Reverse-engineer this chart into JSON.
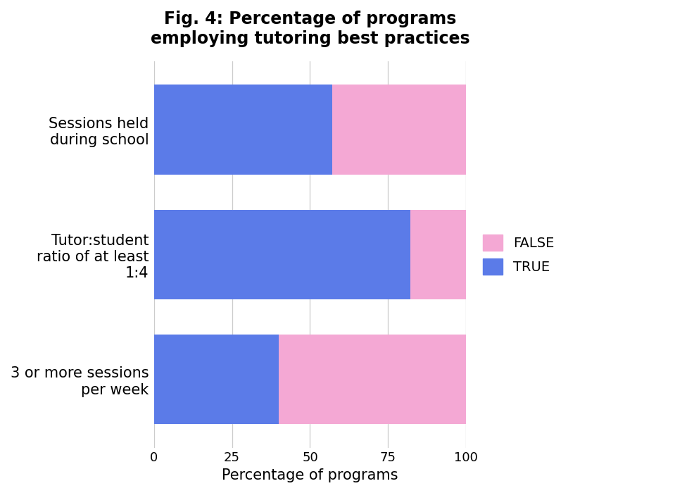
{
  "title": "Fig. 4: Percentage of programs\nemploying tutoring best practices",
  "xlabel": "Percentage of programs",
  "categories": [
    "3 or more sessions\nper week",
    "Tutor:student\nratio of at least\n1:4",
    "Sessions held\nduring school"
  ],
  "true_values": [
    40,
    82,
    57
  ],
  "false_values": [
    60,
    18,
    43
  ],
  "true_color": "#5B7BE8",
  "false_color": "#F4A8D4",
  "xlim": [
    0,
    100
  ],
  "xticks": [
    0,
    25,
    50,
    75,
    100
  ],
  "background_color": "#ffffff",
  "title_fontsize": 17,
  "label_fontsize": 15,
  "tick_fontsize": 13,
  "legend_fontsize": 14,
  "bar_height": 0.72
}
